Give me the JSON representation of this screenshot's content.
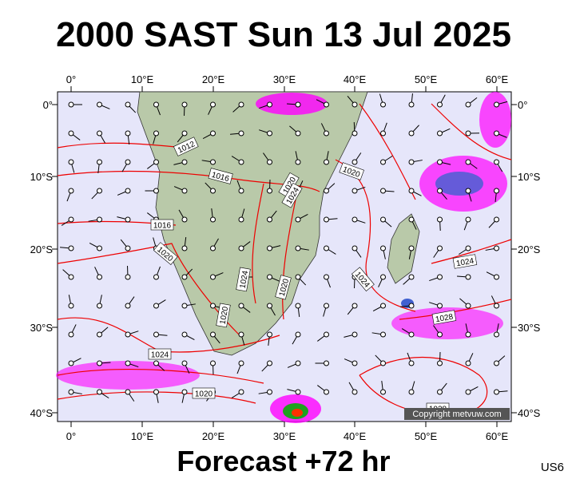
{
  "header": {
    "title": "2000 SAST Sun 13 Jul 2025"
  },
  "footer": {
    "forecast": "Forecast +72 hr",
    "code": "US6"
  },
  "map": {
    "lon_labels": [
      "0°",
      "10°E",
      "20°E",
      "30°E",
      "40°E",
      "50°E",
      "60°E"
    ],
    "lat_labels": [
      "0°",
      "10°S",
      "20°S",
      "30°S",
      "40°S"
    ],
    "isobar_labels": [
      "1012",
      "1016",
      "1016",
      "1020",
      "1020",
      "1024",
      "1020",
      "1020",
      "1024",
      "1020",
      "1024",
      "1024",
      "1028",
      "1024",
      "1020",
      "1028"
    ],
    "copyright": "Copyright metvuw.com"
  }
}
